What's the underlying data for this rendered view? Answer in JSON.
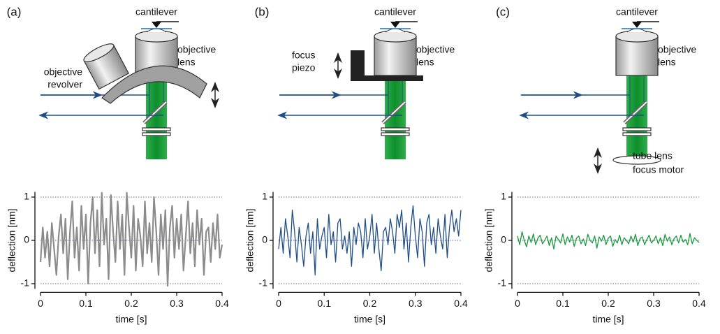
{
  "chart_data": [
    {
      "type": "line",
      "x_label": "time [s]",
      "y_label": "deflection [nm]",
      "color": "#8c8c8c",
      "xlim": [
        0,
        0.4
      ],
      "ylim": [
        -1.12,
        1.12
      ],
      "xticks": [
        0,
        0.1,
        0.2,
        0.3,
        0.4
      ],
      "yticks": [
        -1,
        0,
        1
      ],
      "grid": true,
      "x": [
        0,
        0.005,
        0.01,
        0.015,
        0.02,
        0.025,
        0.03,
        0.035,
        0.04,
        0.045,
        0.05,
        0.055,
        0.06,
        0.065,
        0.07,
        0.075,
        0.08,
        0.085,
        0.09,
        0.095,
        0.1,
        0.105,
        0.11,
        0.115,
        0.12,
        0.125,
        0.13,
        0.135,
        0.14,
        0.145,
        0.15,
        0.155,
        0.16,
        0.165,
        0.17,
        0.175,
        0.18,
        0.185,
        0.19,
        0.195,
        0.2,
        0.205,
        0.21,
        0.215,
        0.22,
        0.225,
        0.23,
        0.235,
        0.24,
        0.245,
        0.25,
        0.255,
        0.26,
        0.265,
        0.27,
        0.275,
        0.28,
        0.285,
        0.29,
        0.295,
        0.3,
        0.305,
        0.31,
        0.315,
        0.32,
        0.325,
        0.33,
        0.335,
        0.34,
        0.345,
        0.35,
        0.355,
        0.36,
        0.365,
        0.37,
        0.375,
        0.38,
        0.385,
        0.39,
        0.395,
        0.4
      ],
      "values": [
        -0.5,
        0.3,
        -0.4,
        0.2,
        -0.6,
        0.4,
        -0.2,
        -0.8,
        0.1,
        0.6,
        -0.3,
        0.5,
        -0.9,
        0.2,
        0.9,
        -0.4,
        0.3,
        -0.7,
        0.8,
        -0.2,
        0.6,
        -1.0,
        0.4,
        1.0,
        -0.3,
        0.7,
        -0.6,
        1.1,
        -0.1,
        0.5,
        -0.9,
        1.05,
        0.2,
        -0.5,
        0.9,
        -0.2,
        0.6,
        -0.8,
        1.1,
        0.3,
        -0.4,
        0.8,
        -0.7,
        0.5,
        0.1,
        -0.6,
        0.9,
        -0.3,
        0.4,
        -0.5,
        1.0,
        0.2,
        -0.8,
        0.6,
        -0.2,
        0.7,
        -1.05,
        0.3,
        0.8,
        -0.4,
        0.5,
        -0.2,
        0.6,
        -0.7,
        0.1,
        0.9,
        -0.3,
        0.4,
        -0.6,
        0.7,
        -0.1,
        0.5,
        -0.8,
        0.2,
        0.3,
        -0.5,
        0.4,
        -0.2,
        0.6,
        -0.4,
        -0.1
      ]
    },
    {
      "type": "line",
      "x_label": "time [s]",
      "y_label": "deflection [nm]",
      "color": "#1f4e86",
      "xlim": [
        0,
        0.4
      ],
      "ylim": [
        -1.12,
        1.12
      ],
      "xticks": [
        0,
        0.1,
        0.2,
        0.3,
        0.4
      ],
      "yticks": [
        -1,
        0,
        1
      ],
      "grid": true,
      "x": [
        0,
        0.005,
        0.01,
        0.015,
        0.02,
        0.025,
        0.03,
        0.035,
        0.04,
        0.045,
        0.05,
        0.055,
        0.06,
        0.065,
        0.07,
        0.075,
        0.08,
        0.085,
        0.09,
        0.095,
        0.1,
        0.105,
        0.11,
        0.115,
        0.12,
        0.125,
        0.13,
        0.135,
        0.14,
        0.145,
        0.15,
        0.155,
        0.16,
        0.165,
        0.17,
        0.175,
        0.18,
        0.185,
        0.19,
        0.195,
        0.2,
        0.205,
        0.21,
        0.215,
        0.22,
        0.225,
        0.23,
        0.235,
        0.24,
        0.245,
        0.25,
        0.255,
        0.26,
        0.265,
        0.27,
        0.275,
        0.28,
        0.285,
        0.29,
        0.295,
        0.3,
        0.305,
        0.31,
        0.315,
        0.32,
        0.325,
        0.33,
        0.335,
        0.34,
        0.345,
        0.35,
        0.355,
        0.36,
        0.365,
        0.37,
        0.375,
        0.38,
        0.385,
        0.39,
        0.395,
        0.4
      ],
      "values": [
        -0.2,
        0.3,
        -0.3,
        0.5,
        0.1,
        -0.4,
        0.7,
        0.2,
        -0.5,
        0.3,
        -0.1,
        -0.6,
        0.1,
        0.4,
        -0.3,
        0.2,
        -0.8,
        0.5,
        -0.2,
        0.1,
        0.3,
        -0.4,
        0.6,
        -0.1,
        0.2,
        -0.5,
        0.4,
        0.5,
        -0.2,
        0.1,
        -0.3,
        0.2,
        -0.6,
        0.3,
        -0.1,
        0.4,
        0.2,
        -0.4,
        0.5,
        -0.2,
        0.1,
        0.6,
        -0.3,
        0.4,
        -0.2,
        -0.7,
        0.2,
        0.3,
        -0.1,
        0.5,
        0.2,
        -0.3,
        0.6,
        0.3,
        0.7,
        -0.2,
        0.4,
        -0.5,
        0.3,
        0.8,
        0.1,
        -0.4,
        0.5,
        0.2,
        -0.6,
        0.4,
        0.6,
        -0.1,
        0.3,
        -0.3,
        0.5,
        0.1,
        -0.2,
        0.6,
        -0.4,
        0.3,
        0.7,
        0.2,
        0.5,
        0.1,
        0.7
      ]
    },
    {
      "type": "line",
      "x_label": "time [s]",
      "y_label": "deflection [nm]",
      "color": "#1a9a3c",
      "xlim": [
        0,
        0.4
      ],
      "ylim": [
        -1.12,
        1.12
      ],
      "xticks": [
        0,
        0.1,
        0.2,
        0.3,
        0.4
      ],
      "yticks": [
        -1,
        0,
        1
      ],
      "grid": true,
      "x": [
        0,
        0.005,
        0.01,
        0.015,
        0.02,
        0.025,
        0.03,
        0.035,
        0.04,
        0.045,
        0.05,
        0.055,
        0.06,
        0.065,
        0.07,
        0.075,
        0.08,
        0.085,
        0.09,
        0.095,
        0.1,
        0.105,
        0.11,
        0.115,
        0.12,
        0.125,
        0.13,
        0.135,
        0.14,
        0.145,
        0.15,
        0.155,
        0.16,
        0.165,
        0.17,
        0.175,
        0.18,
        0.185,
        0.19,
        0.195,
        0.2,
        0.205,
        0.21,
        0.215,
        0.22,
        0.225,
        0.23,
        0.235,
        0.24,
        0.245,
        0.25,
        0.255,
        0.26,
        0.265,
        0.27,
        0.275,
        0.28,
        0.285,
        0.29,
        0.295,
        0.3,
        0.305,
        0.31,
        0.315,
        0.32,
        0.325,
        0.33,
        0.335,
        0.34,
        0.345,
        0.35,
        0.355,
        0.36,
        0.365,
        0.37,
        0.375,
        0.38,
        0.385,
        0.39,
        0.395,
        0.4
      ],
      "values": [
        0.1,
        -0.1,
        0.2,
        0.0,
        -0.15,
        0.1,
        -0.05,
        0.15,
        -0.1,
        0.05,
        0.12,
        -0.08,
        0.0,
        0.1,
        -0.12,
        0.06,
        -0.2,
        0.1,
        0.02,
        -0.06,
        0.15,
        -0.1,
        0.08,
        -0.04,
        0.12,
        -0.14,
        0.05,
        0.1,
        -0.08,
        0.03,
        -0.12,
        0.14,
        0.0,
        -0.06,
        0.1,
        -0.18,
        0.08,
        -0.02,
        0.12,
        -0.1,
        0.05,
        0.1,
        -0.14,
        0.02,
        -0.06,
        0.12,
        -0.1,
        0.06,
        0.0,
        -0.08,
        0.1,
        -0.04,
        0.14,
        -0.12,
        0.04,
        0.08,
        -0.1,
        0.02,
        0.12,
        -0.06,
        0.0,
        0.1,
        -0.08,
        0.06,
        -0.12,
        0.14,
        -0.02,
        0.08,
        -0.1,
        0.04,
        0.1,
        -0.06,
        0.12,
        -0.04,
        0.02,
        -0.1,
        0.16,
        -0.08,
        0.06,
        0.0,
        -0.05
      ]
    }
  ],
  "diagrams": [
    {
      "panel_label": "(a)",
      "cantilever": "cantilever",
      "objective": [
        "objective",
        "lens"
      ],
      "extra": [
        "objective",
        "revolver"
      ]
    },
    {
      "panel_label": "(b)",
      "cantilever": "cantilever",
      "objective": [
        "objective",
        "lens"
      ],
      "extra": [
        "focus",
        "piezo"
      ]
    },
    {
      "panel_label": "(c)",
      "cantilever": "cantilever",
      "objective": [
        "objective",
        "lens"
      ],
      "extra": [
        "tube lens",
        "focus motor"
      ]
    }
  ]
}
